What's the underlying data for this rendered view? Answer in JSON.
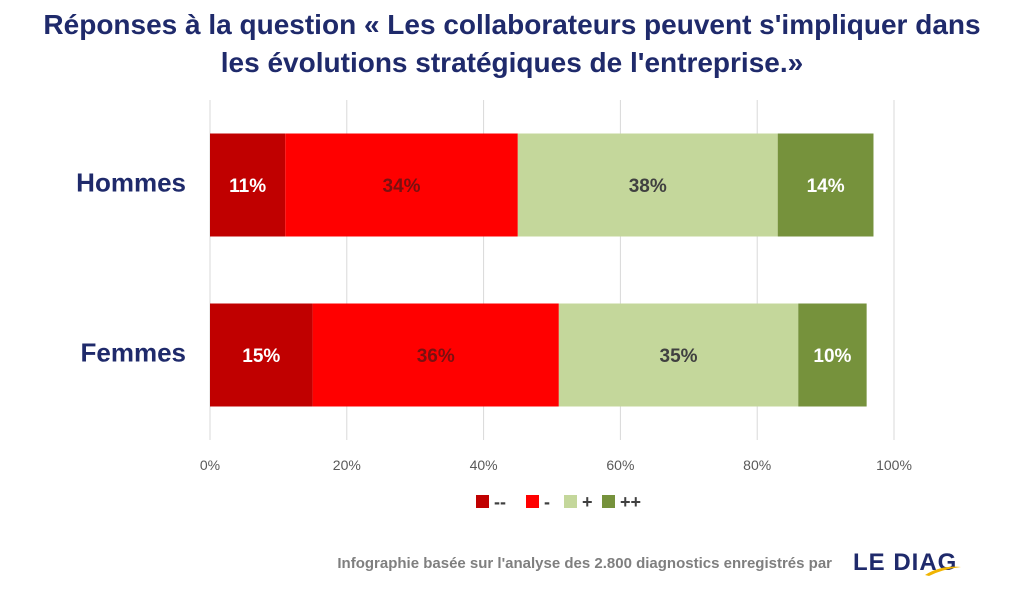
{
  "title": {
    "line1": "Réponses à la question « Les collaborateurs peuvent s'impliquer dans",
    "line2": "les évolutions stratégiques de l'entreprise.»"
  },
  "chart_data": {
    "type": "bar",
    "orientation": "horizontal",
    "stacked": true,
    "categories": [
      "Hommes",
      "Femmes"
    ],
    "series": [
      {
        "name": "--",
        "values": [
          11,
          15
        ],
        "labels": [
          "11%",
          "15%"
        ],
        "color": "#c00000",
        "label_color": "#ffffff"
      },
      {
        "name": "-",
        "values": [
          34,
          36
        ],
        "labels": [
          "34%",
          "36%"
        ],
        "color": "#ff0000",
        "label_color": "#7a1010"
      },
      {
        "name": "+",
        "values": [
          38,
          35
        ],
        "labels": [
          "38%",
          "35%"
        ],
        "color": "#c4d79b",
        "label_color": "#404040"
      },
      {
        "name": "++",
        "values": [
          14,
          10
        ],
        "labels": [
          "14%",
          "10%"
        ],
        "color": "#76923c",
        "label_color": "#ffffff"
      }
    ],
    "xlim": [
      0,
      100
    ],
    "xticks": [
      "0%",
      "20%",
      "40%",
      "60%",
      "80%",
      "100%"
    ],
    "grid": true,
    "legend_position": "bottom"
  },
  "footer": {
    "text": "Infographie basée sur l'analyse des 2.800 diagnostics enregistrés  par",
    "logo": "LE DIAG",
    "logo_color": "#1f2a6b",
    "logo_accent": "#f0b400"
  }
}
